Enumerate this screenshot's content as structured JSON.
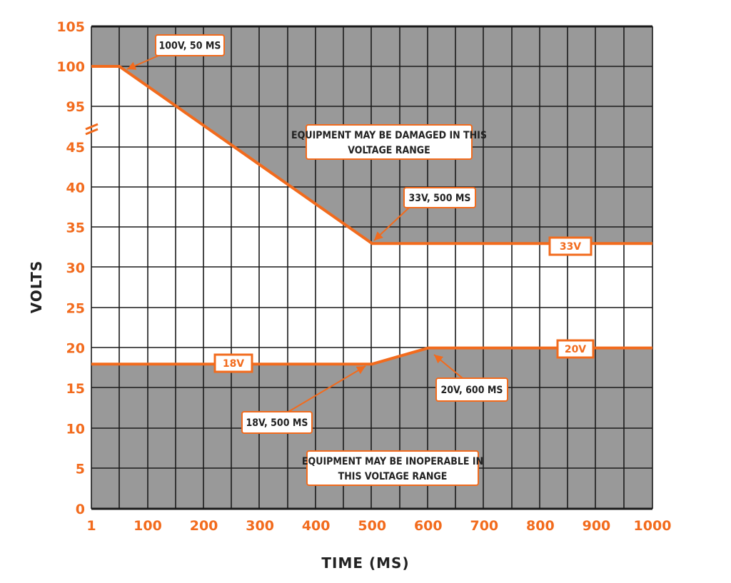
{
  "colors": {
    "accent": "#f26b1d",
    "region": "#999999",
    "grid": "#1a1a1a",
    "text": "#222222",
    "box": "#ffffff"
  },
  "chart_data": {
    "type": "area",
    "xlabel": "TIME (MS)",
    "ylabel": "VOLTS",
    "xlim": [
      1,
      1000
    ],
    "ylim": [
      0,
      105
    ],
    "x_tick_labels": [
      "1",
      "100",
      "200",
      "300",
      "400",
      "500",
      "600",
      "700",
      "800",
      "900",
      "1000"
    ],
    "y_tick_labels": [
      "0",
      "5",
      "10",
      "15",
      "20",
      "25",
      "30",
      "35",
      "40",
      "45",
      "95",
      "100",
      "105"
    ],
    "axis_break": "45 to 95",
    "grid": true,
    "series": [
      {
        "points": [
          [
            1,
            100
          ],
          [
            50,
            100
          ],
          [
            500,
            33
          ],
          [
            1000,
            33
          ]
        ],
        "fill": "above",
        "fill_label": "EQUIPMENT MAY BE DAMAGED IN THIS VOLTAGE RANGE"
      },
      {
        "points": [
          [
            1,
            18
          ],
          [
            500,
            18
          ],
          [
            600,
            20
          ],
          [
            1000,
            20
          ]
        ],
        "fill": "below",
        "fill_label": "EQUIPMENT MAY BE INOPERABLE IN THIS VOLTAGE RANGE"
      }
    ],
    "annotations": [
      "100V, 50 MS",
      "33V, 500 MS",
      "18V, 500 MS",
      "20V, 600 MS"
    ],
    "line_tags": [
      "33V",
      "20V",
      "18V"
    ],
    "region_labels": [
      [
        "EQUIPMENT MAY BE DAMAGED IN THIS",
        "VOLTAGE RANGE"
      ],
      [
        "EQUIPMENT MAY BE INOPERABLE IN",
        "THIS VOLTAGE RANGE"
      ]
    ]
  }
}
